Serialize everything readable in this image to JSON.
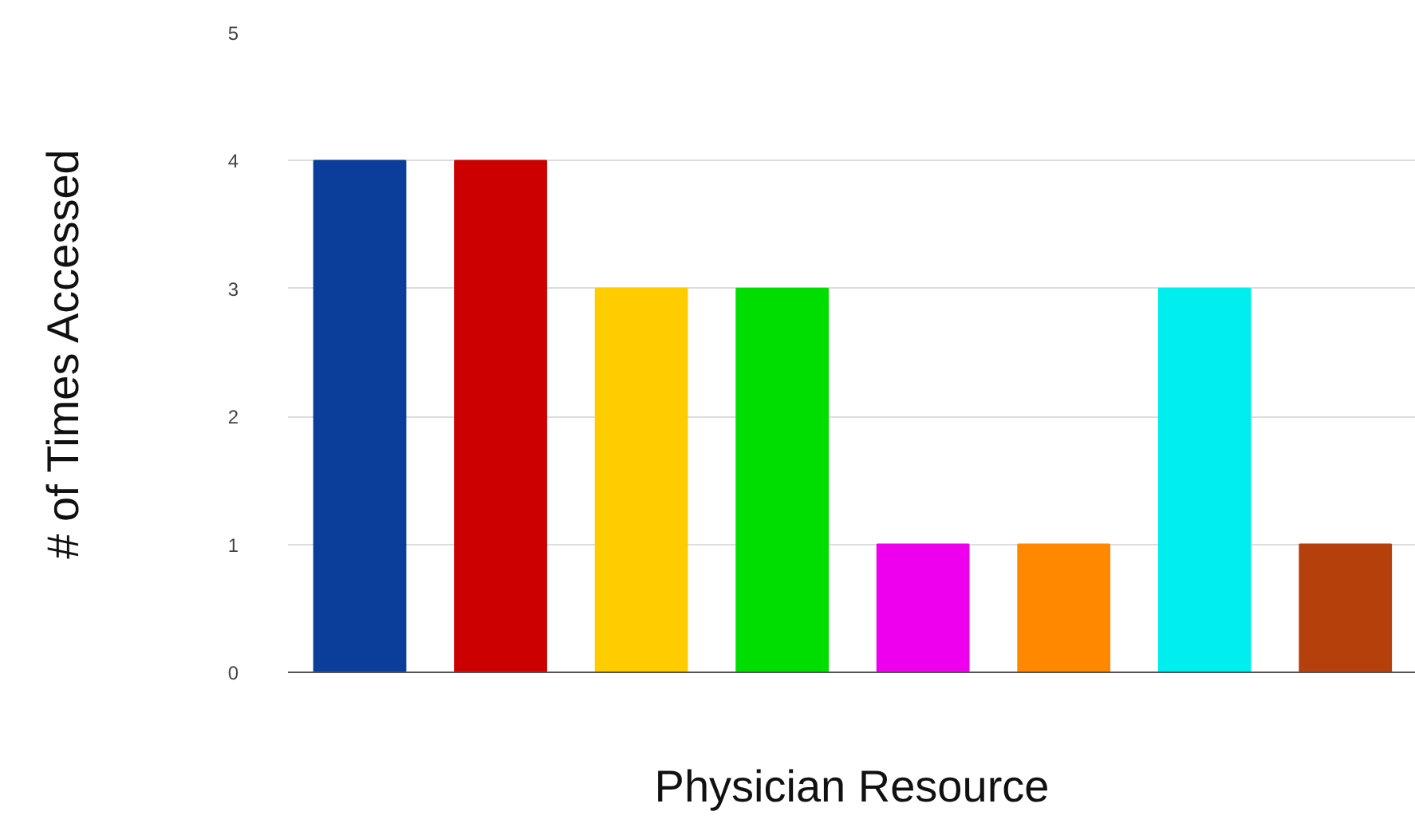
{
  "chart_data": {
    "type": "bar",
    "xlabel": "Physician Resource",
    "ylabel": "# of Times Accessed",
    "categories": [
      null,
      null,
      null,
      null,
      null,
      null,
      null,
      null
    ],
    "values": [
      4,
      4,
      3,
      3,
      1,
      1,
      3,
      1
    ],
    "colors": [
      "#0b3d9a",
      "#cc0000",
      "#ffcc00",
      "#00dd00",
      "#ee00ee",
      "#ff8800",
      "#00eeee",
      "#b5400c"
    ],
    "ylim": [
      0,
      5
    ],
    "yticks": [
      0,
      1,
      2,
      3,
      4,
      5
    ],
    "grid": "y",
    "tick_labels": "y"
  }
}
